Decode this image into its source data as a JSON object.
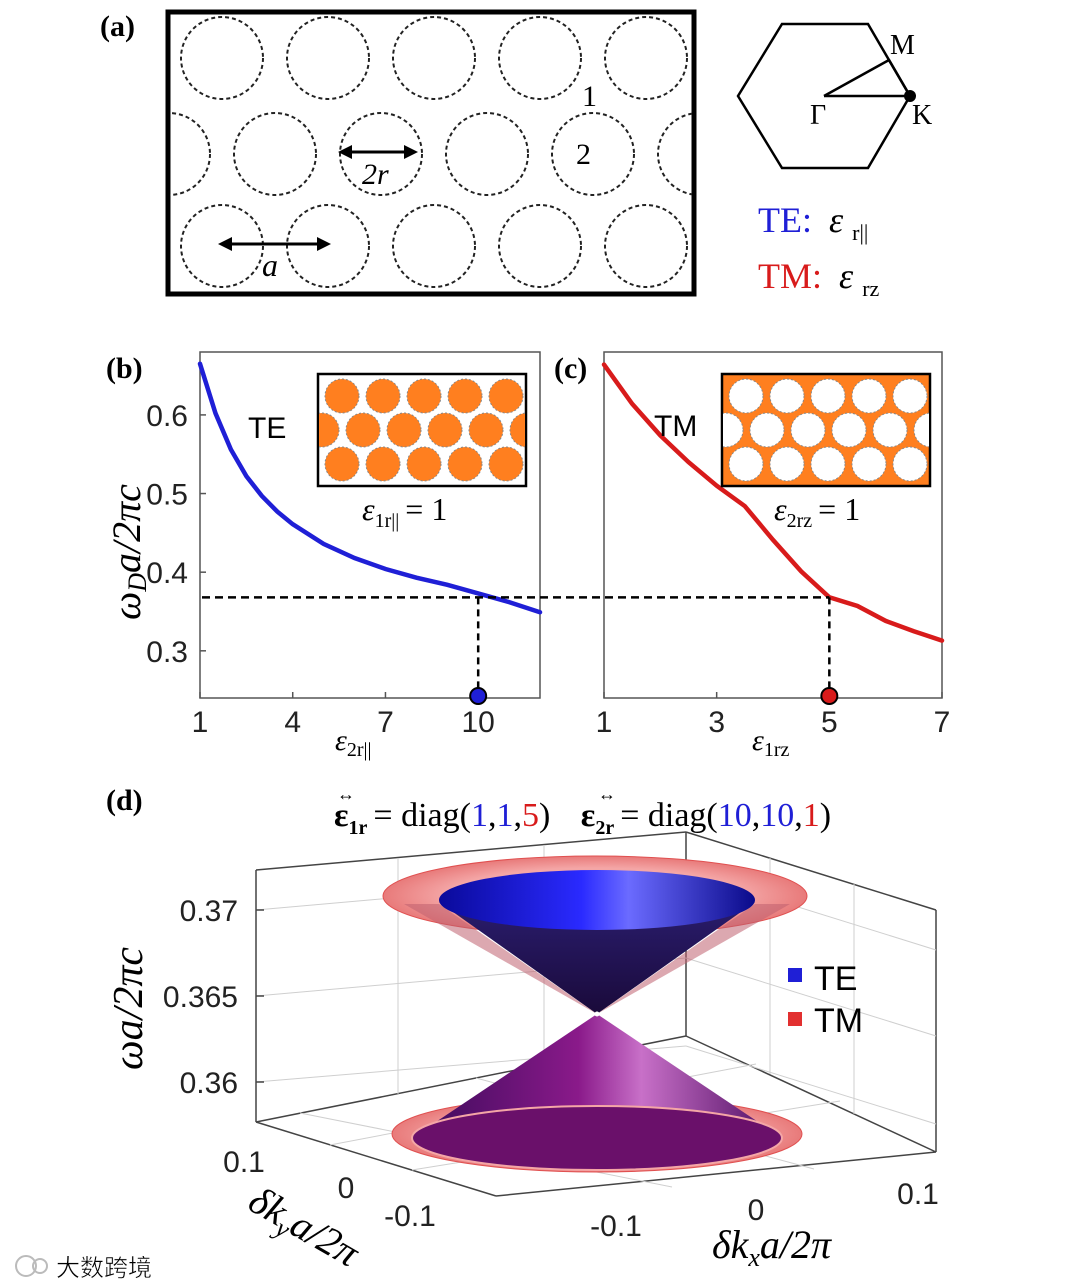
{
  "panel_a": {
    "label": "(a)",
    "site_1": "1",
    "site_2": "2",
    "dim_2r": "2r",
    "dim_a": "a",
    "bz": {
      "Gamma": "Γ",
      "M": "M",
      "K": "K"
    },
    "te_prefix": "TE:",
    "te_eps": "ε",
    "te_sub": "r||",
    "tm_prefix": "TM:",
    "tm_eps": "ε",
    "tm_sub": "rz",
    "colors": {
      "te": "#1f1fd6",
      "tm": "#d81b1b"
    }
  },
  "chart_data": [
    {
      "id": "b",
      "label": "(b)",
      "type": "line",
      "ylabel": "ω_D a/2πc",
      "xlabel": "ε_2r||",
      "series": [
        {
          "name": "TE",
          "color": "#1f1fd6",
          "x": [
            1,
            1.5,
            2,
            2.5,
            3,
            3.5,
            4,
            5,
            6,
            7,
            8,
            9,
            10,
            11,
            12
          ],
          "y": [
            0.665,
            0.602,
            0.556,
            0.522,
            0.497,
            0.477,
            0.461,
            0.436,
            0.418,
            0.404,
            0.393,
            0.384,
            0.373,
            0.362,
            0.349
          ]
        }
      ],
      "xticks": [
        1,
        4,
        7,
        10
      ],
      "yticks": [
        0.3,
        0.4,
        0.5,
        0.6
      ],
      "xlim": [
        1,
        12
      ],
      "ylim": [
        0.24,
        0.68
      ],
      "dashed_level": 0.368,
      "marker_x": 10,
      "inset_label": "ε_1r|| = 1",
      "inset_eps": "ε",
      "inset_sub": "1r||",
      "inset_rhs": "= 1",
      "legend": "TE"
    },
    {
      "id": "c",
      "label": "(c)",
      "type": "line",
      "xlabel": "ε_1rz",
      "series": [
        {
          "name": "TM",
          "color": "#d81b1b",
          "x": [
            1,
            1.5,
            2,
            2.5,
            3,
            3.5,
            4,
            4.5,
            5,
            5.5,
            6,
            6.5,
            7
          ],
          "y": [
            0.664,
            0.614,
            0.574,
            0.54,
            0.51,
            0.484,
            0.441,
            0.401,
            0.368,
            0.357,
            0.338,
            0.325,
            0.313
          ]
        }
      ],
      "xticks": [
        1,
        3,
        5,
        7
      ],
      "xlim": [
        1,
        7
      ],
      "ylim": [
        0.24,
        0.68
      ],
      "dashed_level": 0.368,
      "marker_x": 5,
      "inset_eps": "ε",
      "inset_sub": "2rz",
      "inset_rhs": "= 1",
      "legend": "TM"
    },
    {
      "id": "d",
      "label": "(d)",
      "type": "surface",
      "title_eps1": "ε",
      "title_eps1_sub": "1r",
      "title_eps2": "ε",
      "title_eps2_sub": "2r",
      "title_diag1": [
        "1",
        "1",
        "5"
      ],
      "title_diag2": [
        "10",
        "10",
        "1"
      ],
      "diag_word": "= diag(",
      "zlabel": "ωa/2πc",
      "xlabel": "δk_x a/2π",
      "ylabel": "δk_y a/2π",
      "zticks": [
        "0.36",
        "0.365",
        "0.37"
      ],
      "xticks": [
        "-0.1",
        "0",
        "0.1"
      ],
      "yticks": [
        "0.1",
        "0",
        "-0.1"
      ],
      "dirac_point": 0.3655,
      "legend": [
        {
          "name": "TE",
          "color": "#1f1fd6"
        },
        {
          "name": "TM",
          "color": "#e23030"
        }
      ]
    }
  ],
  "watermark": "大数跨境"
}
